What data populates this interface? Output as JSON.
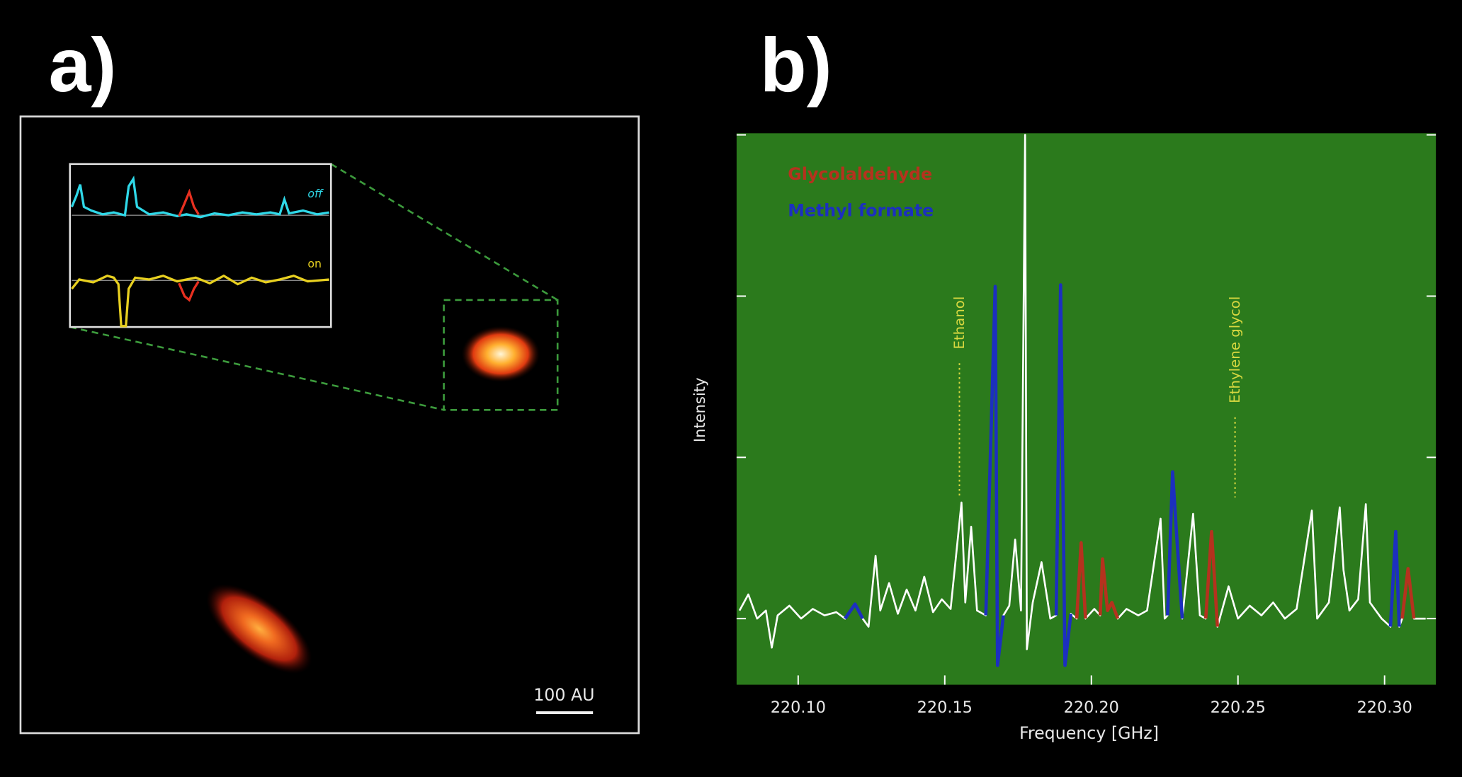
{
  "panel_labels": [
    "a)",
    "b)"
  ],
  "panel_a": {
    "inset_labels": [
      "off",
      "on"
    ],
    "scale_bar": "100 AU"
  },
  "chart_data": {
    "type": "line",
    "xlabel": "Frequency [GHz]",
    "ylabel": "Intensity",
    "xlim": [
      220.079,
      220.3175
    ],
    "ylim": [
      -0.41,
      3.01
    ],
    "xticks": [
      {
        "value": 220.1,
        "label": "220.10"
      },
      {
        "value": 220.15,
        "label": "220.15"
      },
      {
        "value": 220.2,
        "label": "220.20"
      },
      {
        "value": 220.25,
        "label": "220.25"
      },
      {
        "value": 220.3,
        "label": "220.30"
      }
    ],
    "yticks": [
      0,
      1,
      2,
      3
    ],
    "background": "#2b7a1c",
    "x": [
      220.08,
      220.083,
      220.086,
      220.089,
      220.091,
      220.093,
      220.097,
      220.101,
      220.105,
      220.109,
      220.113,
      220.116,
      220.1194,
      220.122,
      220.124,
      220.1264,
      220.128,
      220.131,
      220.134,
      220.137,
      220.14,
      220.143,
      220.146,
      220.149,
      220.152,
      220.1557,
      220.157,
      220.159,
      220.161,
      220.164,
      220.1672,
      220.168,
      220.17,
      220.172,
      220.174,
      220.176,
      220.1774,
      220.178,
      220.18,
      220.183,
      220.186,
      220.188,
      220.1895,
      220.191,
      220.193,
      220.195,
      220.1965,
      220.198,
      220.201,
      220.203,
      220.2038,
      220.2055,
      220.207,
      220.209,
      220.212,
      220.216,
      220.219,
      220.2236,
      220.225,
      220.226,
      220.2277,
      220.229,
      220.231,
      220.2347,
      220.237,
      220.239,
      220.241,
      220.243,
      220.2468,
      220.25,
      220.254,
      220.258,
      220.262,
      220.266,
      220.27,
      220.2752,
      220.277,
      220.281,
      220.2847,
      220.286,
      220.288,
      220.291,
      220.2936,
      220.295,
      220.299,
      220.302,
      220.3038,
      220.305,
      220.306,
      220.308,
      220.31,
      220.314
    ],
    "series": [
      {
        "color": "#ffffff",
        "values": [
          0.05,
          0.15,
          0.0,
          0.05,
          -0.18,
          0.02,
          0.08,
          0.0,
          0.06,
          0.02,
          0.04,
          0.0,
          0.09,
          0.0,
          -0.05,
          0.39,
          0.05,
          0.22,
          0.03,
          0.18,
          0.05,
          0.26,
          0.04,
          0.12,
          0.06,
          0.72,
          0.1,
          0.57,
          0.05,
          0.02,
          2.06,
          -0.29,
          0.02,
          0.08,
          0.49,
          0.05,
          3.0,
          -0.19,
          0.1,
          0.35,
          0.0,
          0.02,
          2.07,
          -0.29,
          0.03,
          0.0,
          0.47,
          0.0,
          0.06,
          0.02,
          0.37,
          0.05,
          0.1,
          0.0,
          0.06,
          0.02,
          0.05,
          0.62,
          0.0,
          0.02,
          0.91,
          0.54,
          0.0,
          0.65,
          0.02,
          0.0,
          0.54,
          -0.05,
          0.2,
          0.0,
          0.08,
          0.02,
          0.1,
          0.0,
          0.06,
          0.67,
          0.0,
          0.1,
          0.69,
          0.3,
          0.05,
          0.12,
          0.71,
          0.1,
          0.0,
          -0.05,
          0.54,
          -0.05,
          0.0,
          0.31,
          0.0,
          0.0
        ]
      },
      {
        "name": "Glycolaldehyde",
        "color": "#b5321e",
        "values": [
          null,
          null,
          null,
          null,
          null,
          null,
          null,
          null,
          null,
          null,
          null,
          null,
          null,
          null,
          null,
          null,
          null,
          null,
          null,
          null,
          null,
          null,
          null,
          null,
          null,
          null,
          null,
          null,
          null,
          null,
          null,
          null,
          null,
          null,
          null,
          null,
          null,
          null,
          null,
          null,
          null,
          null,
          null,
          null,
          null,
          0.0,
          0.47,
          0.0,
          null,
          0.02,
          0.37,
          0.05,
          0.1,
          0.0,
          null,
          null,
          null,
          null,
          null,
          null,
          null,
          null,
          null,
          null,
          null,
          0.0,
          0.54,
          -0.05,
          null,
          null,
          null,
          null,
          null,
          null,
          null,
          null,
          null,
          null,
          null,
          null,
          null,
          null,
          null,
          null,
          null,
          null,
          null,
          null,
          0.0,
          0.31,
          0.0,
          null
        ]
      },
      {
        "name": "Methyl formate",
        "color": "#1c2fc0",
        "values": [
          null,
          null,
          null,
          null,
          null,
          null,
          null,
          null,
          null,
          null,
          null,
          0.0,
          0.09,
          0.0,
          null,
          null,
          null,
          null,
          null,
          null,
          null,
          null,
          null,
          null,
          null,
          null,
          null,
          null,
          null,
          0.02,
          2.06,
          -0.29,
          0.02,
          null,
          null,
          null,
          null,
          null,
          null,
          null,
          null,
          0.02,
          2.07,
          -0.29,
          0.03,
          null,
          null,
          null,
          null,
          null,
          null,
          null,
          null,
          null,
          null,
          null,
          null,
          null,
          null,
          0.02,
          0.91,
          0.54,
          0.0,
          null,
          null,
          null,
          null,
          null,
          null,
          null,
          null,
          null,
          null,
          null,
          null,
          null,
          null,
          null,
          null,
          null,
          null,
          null,
          null,
          null,
          null,
          -0.05,
          0.54,
          -0.05,
          null,
          null,
          null,
          null
        ]
      }
    ],
    "annotations": [
      {
        "text": "Ethanol",
        "x": 220.155
      },
      {
        "text": "Ethylene glycol",
        "x": 220.249
      }
    ]
  }
}
